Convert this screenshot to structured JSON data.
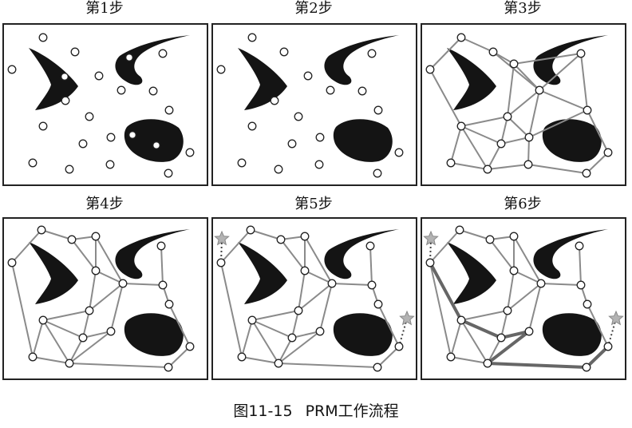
{
  "panels": [
    {
      "title": "第1步"
    },
    {
      "title": "第2步"
    },
    {
      "title": "第3步"
    },
    {
      "title": "第4步"
    },
    {
      "title": "第5步"
    },
    {
      "title": "第6步"
    }
  ],
  "caption": {
    "figure_number": "图11-15",
    "text": "PRM工作流程"
  },
  "colors": {
    "obstacle": "#141414",
    "edge": "#8a8a8a",
    "path": "#666666",
    "star": "#b3b3b3",
    "border": "#222222"
  }
}
